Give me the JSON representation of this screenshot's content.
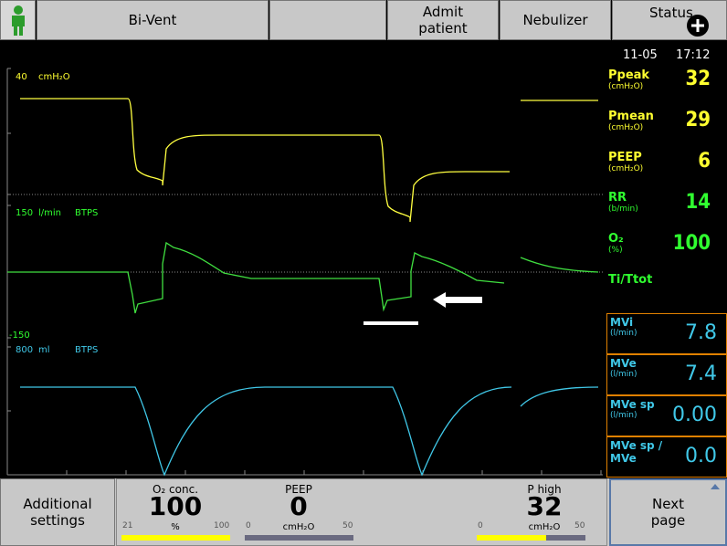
{
  "header": {
    "bi_vent": "Bi-Vent",
    "admit_patient": "Admit patient",
    "nebulizer": "Nebulizer",
    "status": "Status"
  },
  "clock": {
    "date": "11-05",
    "time": "17:12"
  },
  "waveforms": [
    {
      "max": "40",
      "unit": "cmH₂O"
    },
    {
      "max": "150",
      "unit": "l/min",
      "mode": "BTPS",
      "min": "-150"
    },
    {
      "max": "800",
      "unit": "ml",
      "mode": "BTPS"
    }
  ],
  "parameters": [
    {
      "name": "Ppeak",
      "unit": "(cmH₂O)",
      "value": "32"
    },
    {
      "name": "Pmean",
      "unit": "(cmH₂O)",
      "value": "29"
    },
    {
      "name": "PEEP",
      "unit": "(cmH₂O)",
      "value": "6"
    },
    {
      "name": "RR",
      "unit": "(b/min)",
      "value": "14"
    },
    {
      "name": "O₂",
      "unit": "(%)",
      "value": "100"
    },
    {
      "name": "Ti/Ttot"
    }
  ],
  "minute_volumes": [
    {
      "name": "MVi",
      "unit": "(l/min)",
      "value": "7.8"
    },
    {
      "name": "MVe",
      "unit": "(l/min)",
      "value": "7.4"
    },
    {
      "name": "MVe sp",
      "unit": "(l/min)",
      "value": "0.00"
    },
    {
      "name": "MVe sp / MVe",
      "value": "0.0"
    }
  ],
  "footer": {
    "additional_settings": "Additional settings",
    "next_page": "Next page"
  },
  "settings": [
    {
      "name": "O₂ conc.",
      "value": 100,
      "unit": "%",
      "min": 21,
      "max": 100
    },
    {
      "name": "PEEP",
      "value": 0,
      "unit": "cmH₂O",
      "min": 0,
      "max": 50
    },
    {
      "name": "P high",
      "value": 32,
      "unit": "cmH₂O",
      "min": 0,
      "max": 50
    }
  ]
}
